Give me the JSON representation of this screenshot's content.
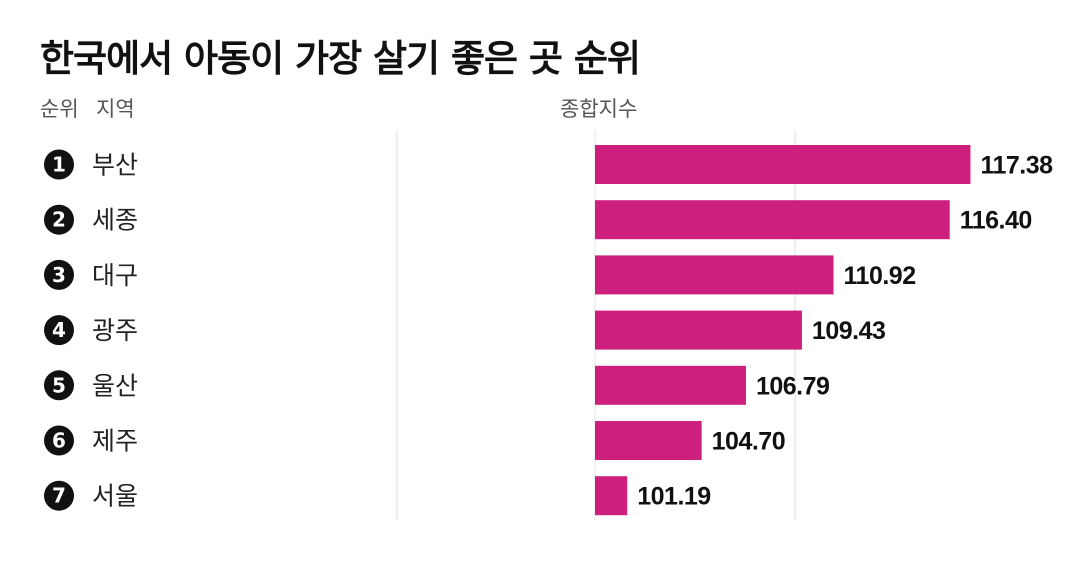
{
  "chart_data": {
    "type": "bar",
    "orientation": "horizontal",
    "title": "한국에서 아동이 가장 살기 좋은 곳 순위",
    "columns": {
      "rank": "순위",
      "region": "지역",
      "value": "종합지수"
    },
    "categories": [
      "부산",
      "세종",
      "대구",
      "광주",
      "울산",
      "제주",
      "서울"
    ],
    "ranks": [
      "1",
      "2",
      "3",
      "4",
      "5",
      "6",
      "7"
    ],
    "values": [
      117.38,
      116.4,
      110.92,
      109.43,
      106.79,
      104.7,
      101.19
    ],
    "value_labels": [
      "117.38",
      "116.40",
      "110.92",
      "109.43",
      "106.79",
      "104.70",
      "101.19"
    ],
    "bar_color": "#cc1f7e",
    "grid": true,
    "legend": "none"
  }
}
